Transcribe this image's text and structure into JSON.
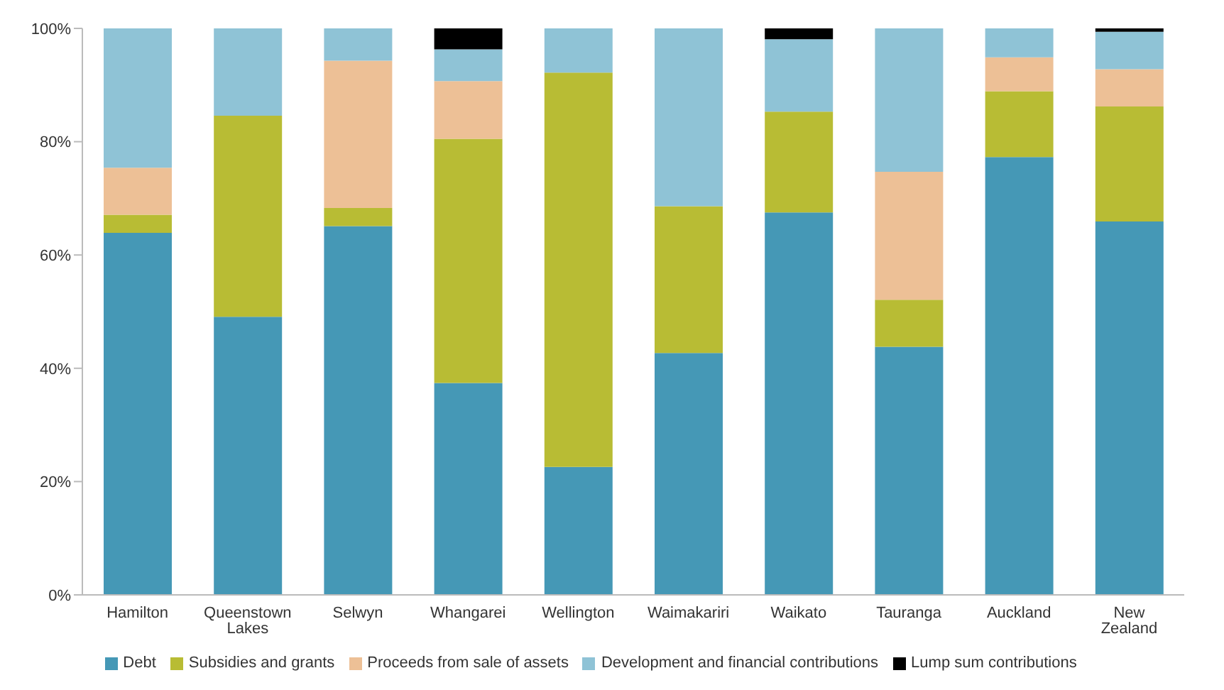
{
  "chart_data": {
    "type": "bar",
    "stacked": true,
    "categories": [
      "Hamilton",
      "Queenstown Lakes",
      "Selwyn",
      "Whangarei",
      "Wellington",
      "Waimakariri",
      "Waikato",
      "Tauranga",
      "Auckland",
      "New Zealand"
    ],
    "series": [
      {
        "name": "Debt",
        "color": "#4598b6",
        "values": [
          63.9,
          49.1,
          65.1,
          37.4,
          22.6,
          42.7,
          67.5,
          43.8,
          77.3,
          65.9
        ]
      },
      {
        "name": "Subsidies and grants",
        "color": "#b8bc34",
        "values": [
          3.2,
          35.5,
          3.2,
          43.1,
          69.6,
          25.9,
          17.8,
          8.3,
          11.6,
          20.3
        ]
      },
      {
        "name": "Proceeds from sale of assets",
        "color": "#edc096",
        "values": [
          8.3,
          0,
          26,
          10.2,
          0,
          0,
          0,
          22.6,
          6,
          6.6
        ]
      },
      {
        "name": "Development and financial contributions",
        "color": "#8fc3d6",
        "values": [
          24.6,
          15.4,
          5.7,
          5.6,
          7.8,
          31.4,
          12.8,
          25.3,
          5.1,
          6.6
        ]
      },
      {
        "name": "Lump sum contributions",
        "color": "#000000",
        "values": [
          0,
          0,
          0,
          3.7,
          0,
          0,
          1.9,
          0,
          0,
          0.6
        ]
      }
    ],
    "ylim": [
      0,
      100
    ],
    "yticks": [
      {
        "value": 0,
        "label": "0%"
      },
      {
        "value": 20,
        "label": "20%"
      },
      {
        "value": 40,
        "label": "40%"
      },
      {
        "value": 60,
        "label": "60%"
      },
      {
        "value": 80,
        "label": "80%"
      },
      {
        "value": 100,
        "label": "100%"
      }
    ],
    "grid": false,
    "legend": "bottom"
  }
}
